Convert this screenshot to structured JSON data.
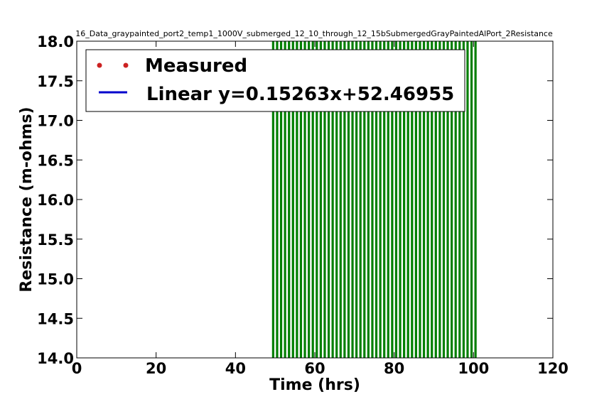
{
  "chart_data": {
    "type": "line",
    "title": "16_Data_graypainted_port2_temp1_1000V_submerged_12_10_through_12_15bSubmergedGrayPaintedAlPort_2Resistance",
    "xlabel": "Time (hrs)",
    "ylabel": "Resistance (m-ohms)",
    "xlim": [
      0,
      120
    ],
    "ylim": [
      14.0,
      18.0
    ],
    "xticks": [
      "0",
      "20",
      "40",
      "60",
      "80",
      "100",
      "120"
    ],
    "yticks": [
      "14.0",
      "14.5",
      "15.0",
      "15.5",
      "16.0",
      "16.5",
      "17.0",
      "17.5",
      "18.0"
    ],
    "grid": false,
    "legend_position": "upper-left",
    "series": [
      {
        "name": "Measured",
        "style": "markers",
        "color": "#cc2222",
        "x": [],
        "y": []
      },
      {
        "name": "Linear y=0.15263x+52.46955",
        "style": "line",
        "color": "#0000cc",
        "slope": 0.15263,
        "intercept": 52.46955
      },
      {
        "style": "vertical-lines",
        "color": "#007f00",
        "x_start": 49.5,
        "x_end": 100.5,
        "spacing": 1.0
      }
    ]
  }
}
